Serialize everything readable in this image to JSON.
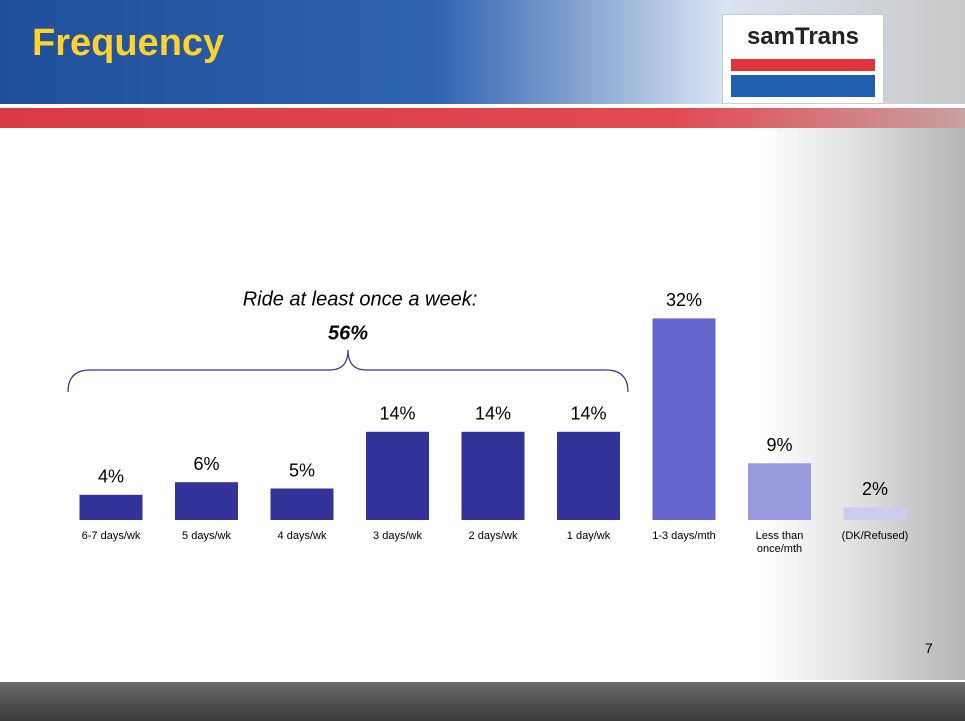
{
  "header": {
    "title": "Frequency",
    "logo": "samTrans"
  },
  "chart_data": {
    "type": "bar",
    "categories": [
      "6-7 days/wk",
      "5 days/wk",
      "4 days/wk",
      "3 days/wk",
      "2 days/wk",
      "1 day/wk",
      "1-3 days/mth",
      "Less than once/mth",
      "(DK/Refused)"
    ],
    "values": [
      4,
      6,
      5,
      14,
      14,
      14,
      32,
      9,
      2
    ],
    "value_labels": [
      "4%",
      "6%",
      "5%",
      "14%",
      "14%",
      "14%",
      "32%",
      "9%",
      "2%"
    ],
    "colors": [
      "#333399",
      "#333399",
      "#333399",
      "#333399",
      "#333399",
      "#333399",
      "#6666cc",
      "#9999dd",
      "#ccccee"
    ],
    "annotation": {
      "text": "Ride at least once a week:",
      "value_label": "56%"
    }
  },
  "page_number": "7"
}
